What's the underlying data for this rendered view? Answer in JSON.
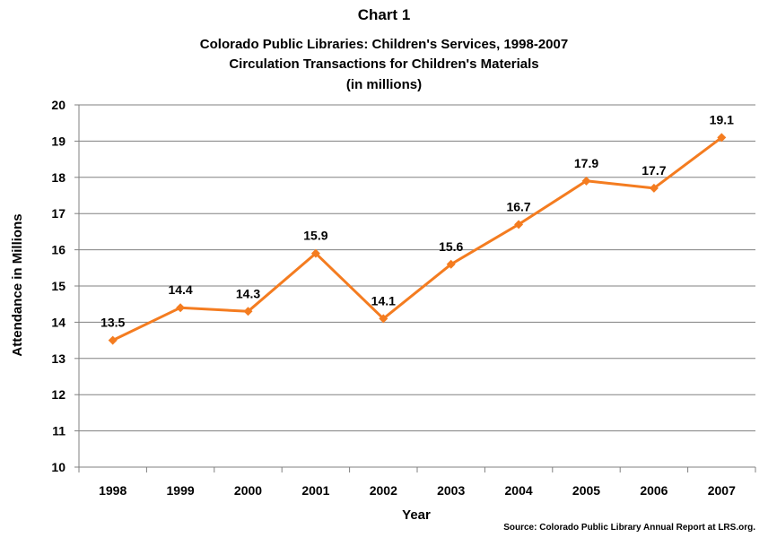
{
  "header": {
    "chart_label": "Chart 1",
    "title_line1": "Colorado Public Libraries: Children's Services, 1998-2007",
    "title_line2": "Circulation Transactions for Children's Materials",
    "title_line3": "(in millions)"
  },
  "source": "Source: Colorado Public Library Annual Report at LRS.org.",
  "colors": {
    "line": "#f47c20",
    "grid": "#808080",
    "axis": "#808080",
    "text": "#000000"
  },
  "chart_data": {
    "type": "line",
    "title": "Colorado Public Libraries: Children's Services, 1998-2007",
    "xlabel": "Year",
    "ylabel": "Attendance in Millions",
    "categories": [
      "1998",
      "1999",
      "2000",
      "2001",
      "2002",
      "2003",
      "2004",
      "2005",
      "2006",
      "2007"
    ],
    "values": [
      13.5,
      14.4,
      14.3,
      15.9,
      14.1,
      15.6,
      16.7,
      17.9,
      17.7,
      19.1
    ],
    "data_labels": [
      "13.5",
      "14.4",
      "14.3",
      "15.9",
      "14.1",
      "15.6",
      "16.7",
      "17.9",
      "17.7",
      "19.1"
    ],
    "ylim": [
      10,
      20
    ],
    "yticks": [
      10,
      11,
      12,
      13,
      14,
      15,
      16,
      17,
      18,
      19,
      20
    ],
    "grid": true,
    "legend": "none"
  }
}
